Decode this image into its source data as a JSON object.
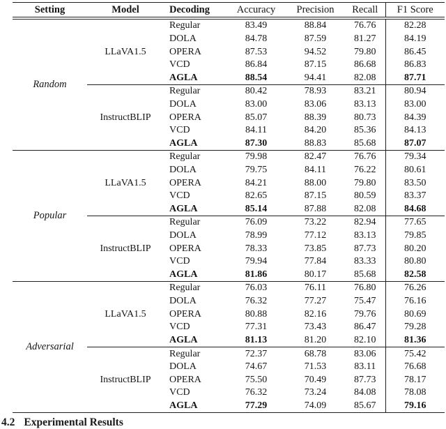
{
  "table": {
    "headers": {
      "setting": "Setting",
      "model": "Model",
      "decoding": "Decoding",
      "metrics": [
        "Accuracy",
        "Precision",
        "Recall",
        "F1 Score"
      ]
    },
    "sections": [
      {
        "setting": "Random",
        "blocks": [
          {
            "model": "LLaVA1.5",
            "rows": [
              {
                "decoding": "Regular",
                "values": [
                  "83.49",
                  "88.84",
                  "76.76",
                  "82.28"
                ]
              },
              {
                "decoding": "DOLA",
                "values": [
                  "84.78",
                  "87.59",
                  "81.27",
                  "84.19"
                ]
              },
              {
                "decoding": "OPERA",
                "values": [
                  "87.53",
                  "94.52",
                  "79.80",
                  "86.45"
                ]
              },
              {
                "decoding": "VCD",
                "values": [
                  "86.84",
                  "87.15",
                  "86.68",
                  "86.83"
                ]
              },
              {
                "decoding": "AGLA",
                "values": [
                  "88.54",
                  "94.41",
                  "82.08",
                  "87.71"
                ],
                "bold_label": true,
                "bold_values": [
                  0,
                  3
                ]
              }
            ]
          },
          {
            "model": "InstructBLIP",
            "rows": [
              {
                "decoding": "Regular",
                "values": [
                  "80.42",
                  "78.93",
                  "83.21",
                  "80.94"
                ]
              },
              {
                "decoding": "DOLA",
                "values": [
                  "83.00",
                  "83.06",
                  "83.13",
                  "83.00"
                ]
              },
              {
                "decoding": "OPERA",
                "values": [
                  "85.07",
                  "88.39",
                  "80.73",
                  "84.39"
                ]
              },
              {
                "decoding": "VCD",
                "values": [
                  "84.11",
                  "84.20",
                  "85.36",
                  "84.13"
                ]
              },
              {
                "decoding": "AGLA",
                "values": [
                  "87.30",
                  "88.83",
                  "85.68",
                  "87.07"
                ],
                "bold_label": true,
                "bold_values": [
                  0,
                  3
                ]
              }
            ]
          }
        ]
      },
      {
        "setting": "Popular",
        "blocks": [
          {
            "model": "LLaVA1.5",
            "rows": [
              {
                "decoding": "Regular",
                "values": [
                  "79.98",
                  "82.47",
                  "76.76",
                  "79.34"
                ]
              },
              {
                "decoding": "DOLA",
                "values": [
                  "79.75",
                  "84.11",
                  "76.22",
                  "80.61"
                ]
              },
              {
                "decoding": "OPERA",
                "values": [
                  "84.21",
                  "88.00",
                  "79.80",
                  "83.50"
                ]
              },
              {
                "decoding": "VCD",
                "values": [
                  "82.65",
                  "87.15",
                  "80.59",
                  "83.37"
                ]
              },
              {
                "decoding": "AGLA",
                "values": [
                  "85.14",
                  "87.88",
                  "82.08",
                  "84.68"
                ],
                "bold_label": true,
                "bold_values": [
                  0,
                  3
                ]
              }
            ]
          },
          {
            "model": "InstructBLIP",
            "rows": [
              {
                "decoding": "Regular",
                "values": [
                  "76.09",
                  "73.22",
                  "82.94",
                  "77.65"
                ]
              },
              {
                "decoding": "DOLA",
                "values": [
                  "78.99",
                  "77.12",
                  "83.13",
                  "79.85"
                ]
              },
              {
                "decoding": "OPERA",
                "values": [
                  "78.33",
                  "73.85",
                  "87.73",
                  "80.20"
                ]
              },
              {
                "decoding": "VCD",
                "values": [
                  "79.94",
                  "77.84",
                  "83.33",
                  "80.80"
                ]
              },
              {
                "decoding": "AGLA",
                "values": [
                  "81.86",
                  "80.17",
                  "85.68",
                  "82.58"
                ],
                "bold_label": true,
                "bold_values": [
                  0,
                  3
                ]
              }
            ]
          }
        ]
      },
      {
        "setting": "Adversarial",
        "blocks": [
          {
            "model": "LLaVA1.5",
            "rows": [
              {
                "decoding": "Regular",
                "values": [
                  "76.03",
                  "76.11",
                  "76.80",
                  "76.26"
                ]
              },
              {
                "decoding": "DOLA",
                "values": [
                  "76.32",
                  "77.27",
                  "75.47",
                  "76.16"
                ]
              },
              {
                "decoding": "OPERA",
                "values": [
                  "80.88",
                  "82.16",
                  "79.76",
                  "80.69"
                ]
              },
              {
                "decoding": "VCD",
                "values": [
                  "77.31",
                  "73.43",
                  "86.47",
                  "79.28"
                ]
              },
              {
                "decoding": "AGLA",
                "values": [
                  "81.13",
                  "81.20",
                  "82.10",
                  "81.36"
                ],
                "bold_label": true,
                "bold_values": [
                  0,
                  3
                ]
              }
            ]
          },
          {
            "model": "InstructBLIP",
            "rows": [
              {
                "decoding": "Regular",
                "values": [
                  "72.37",
                  "68.78",
                  "83.06",
                  "75.42"
                ]
              },
              {
                "decoding": "DOLA",
                "values": [
                  "74.67",
                  "71.53",
                  "83.11",
                  "76.68"
                ]
              },
              {
                "decoding": "OPERA",
                "values": [
                  "75.50",
                  "70.49",
                  "87.73",
                  "78.17"
                ]
              },
              {
                "decoding": "VCD",
                "values": [
                  "76.32",
                  "73.24",
                  "84.08",
                  "78.08"
                ]
              },
              {
                "decoding": "AGLA",
                "values": [
                  "77.29",
                  "74.09",
                  "85.67",
                  "79.16"
                ],
                "bold_label": true,
                "bold_values": [
                  0,
                  3
                ]
              }
            ]
          }
        ]
      }
    ]
  },
  "footer": {
    "heading_number": "4.2",
    "heading_title": "Experimental Results"
  }
}
